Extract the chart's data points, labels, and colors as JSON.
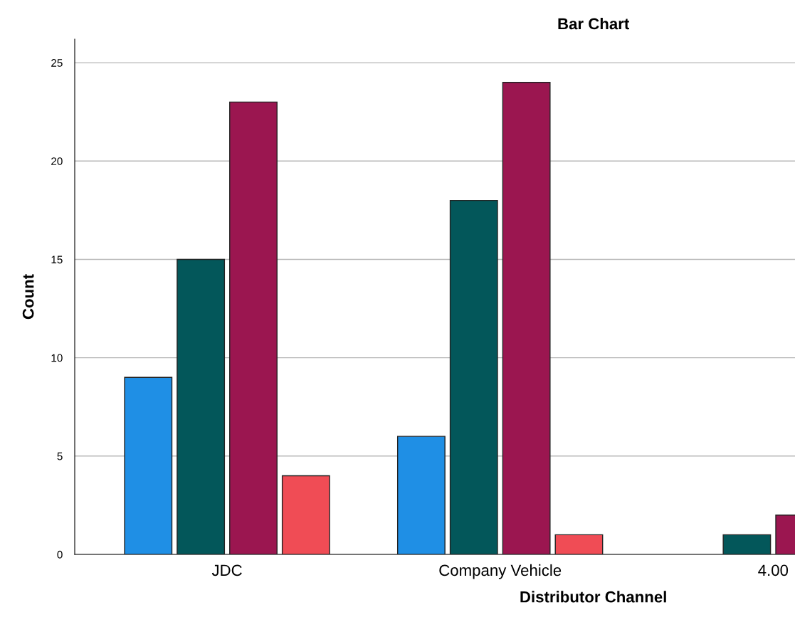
{
  "chart_data": {
    "type": "bar",
    "title": "Bar Chart",
    "xlabel": "Distributor Channel",
    "ylabel": "Count",
    "categories": [
      "JDC",
      "Company Vehicle",
      "4.00"
    ],
    "series": [
      {
        "color": "#1f8fe5",
        "values": [
          9,
          6,
          null
        ]
      },
      {
        "color": "#03575a",
        "values": [
          15,
          18,
          1
        ]
      },
      {
        "color": "#9b1650",
        "values": [
          23,
          24,
          2
        ]
      },
      {
        "color": "#f04c55",
        "values": [
          4,
          1,
          null
        ]
      }
    ],
    "ylim": [
      0,
      26.2
    ],
    "yticks": [
      0,
      5,
      10,
      15,
      20,
      25
    ],
    "grid": "y",
    "legend": false
  }
}
